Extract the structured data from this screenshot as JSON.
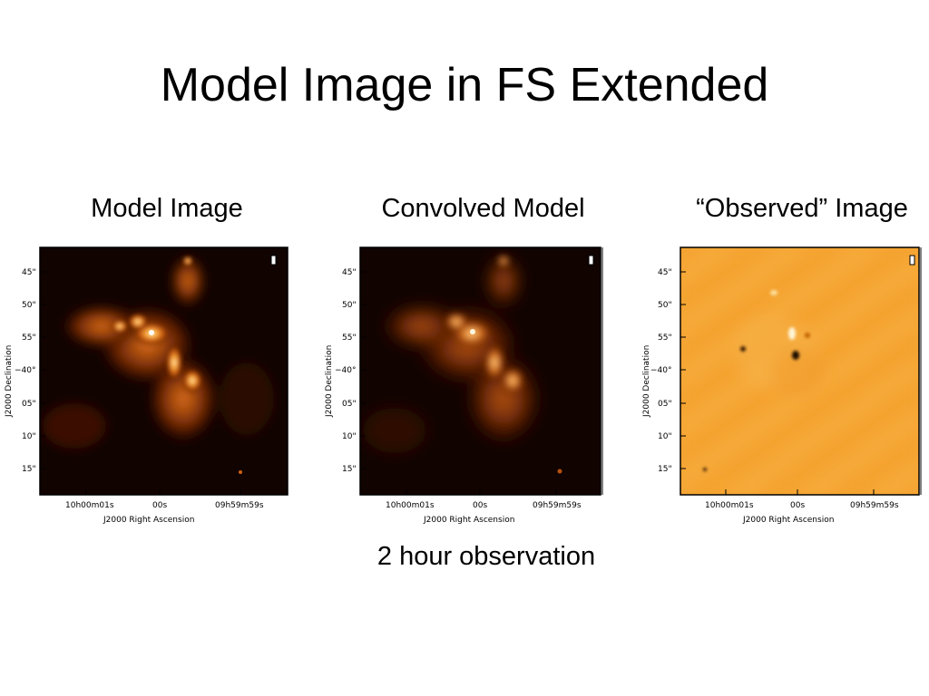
{
  "slide": {
    "title": "Model Image in FS Extended",
    "footer": "2 hour observation"
  },
  "panels": [
    {
      "caption": "Model Image",
      "y_axis_title": "J2000 Declination",
      "x_axis_title": "J2000 Right Ascension",
      "y_ticks": [
        "45\"",
        "50\"",
        "55\"",
        "−40°",
        "05\"",
        "10\"",
        "15\""
      ],
      "x_ticks": [
        "10h00m01s",
        "00s",
        "09h59m59s"
      ],
      "colormap": "black-to-orange heat"
    },
    {
      "caption": "Convolved Model",
      "y_axis_title": "J2000 Declination",
      "x_axis_title": "J2000 Right Ascension",
      "y_ticks": [
        "45\"",
        "50\"",
        "55\"",
        "−40°",
        "05\"",
        "10\"",
        "15\""
      ],
      "x_ticks": [
        "10h00m01s",
        "00s",
        "09h59m59s"
      ],
      "colormap": "black-to-orange heat (smoothed)"
    },
    {
      "caption": "“Observed” Image",
      "y_axis_title": "J2000 Declination",
      "x_axis_title": "J2000 Right Ascension",
      "y_ticks": [
        "45\"",
        "50\"",
        "55\"",
        "−40°",
        "05\"",
        "10\"",
        "15\""
      ],
      "x_ticks": [
        "10h00m01s",
        "00s",
        "09h59m59s"
      ],
      "colormap": "orange residual"
    }
  ]
}
